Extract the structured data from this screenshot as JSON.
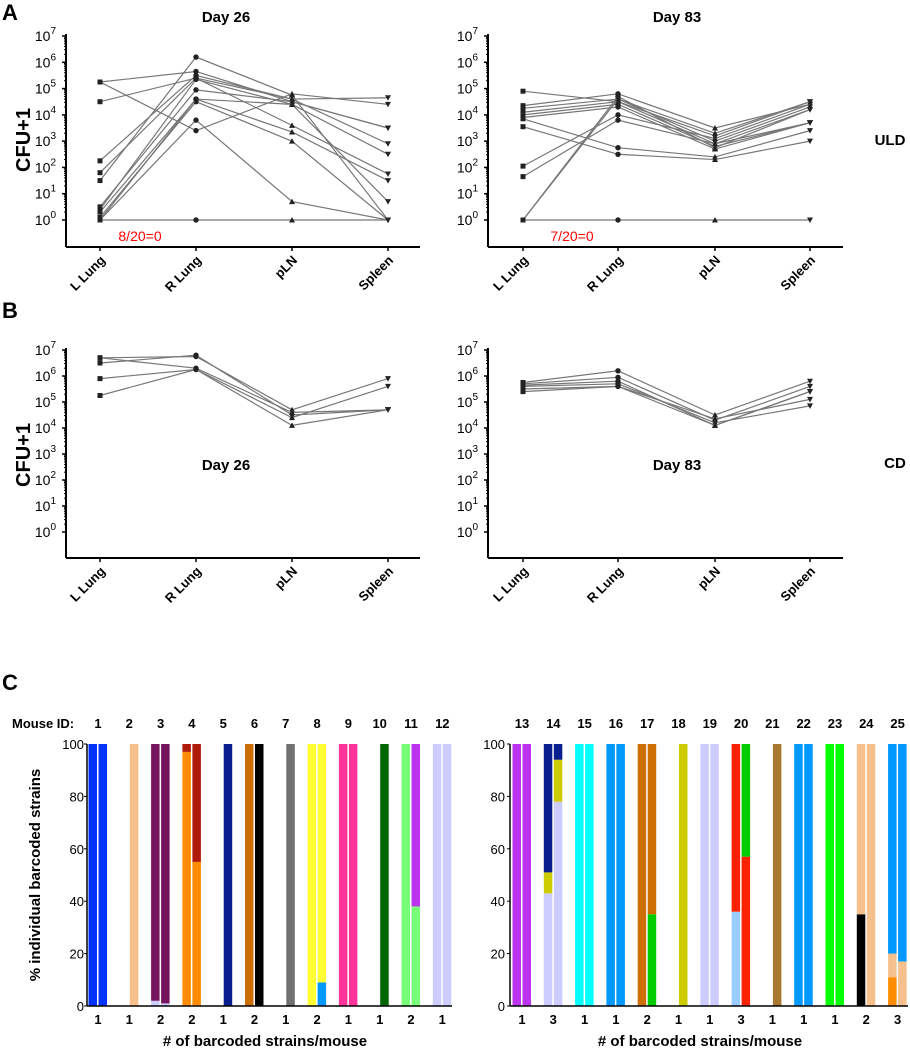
{
  "panel_letters": {
    "a": "A",
    "b": "B",
    "c": "C"
  },
  "chart_data": [
    {
      "id": "A-day26",
      "type": "line",
      "panel": "A",
      "title": "Day 26",
      "ylabel": "CFU+1",
      "yscale": "log",
      "ylim_exp": [
        0,
        7
      ],
      "ytick_exps": [
        0,
        1,
        2,
        3,
        4,
        5,
        6,
        7
      ],
      "ytick_base": "10",
      "categories": [
        "L Lung",
        "R Lung",
        "pLN",
        "Spleen"
      ],
      "annotation": "8/20=0",
      "annotation_color": "#ff0000",
      "series_log10": [
        [
          0,
          0,
          0,
          0
        ],
        [
          5.25,
          5.65,
          4.5,
          3.5
        ],
        [
          4.5,
          5.4,
          4.6,
          4.65
        ],
        [
          5.25,
          3.4,
          4.8,
          4.4
        ],
        [
          2.25,
          5.5,
          4.6,
          2.9
        ],
        [
          1.8,
          5.4,
          3.6,
          1.75
        ],
        [
          1.5,
          6.2,
          4.75,
          0
        ],
        [
          0.5,
          4.95,
          4.5,
          3.5
        ],
        [
          0.3,
          4.6,
          3.35,
          1.5
        ],
        [
          0.1,
          4.5,
          3.0,
          0
        ],
        [
          0,
          3.8,
          0.7,
          0
        ],
        [
          0,
          4.6,
          4.4,
          0.7
        ],
        [
          0.4,
          5.35,
          4.4,
          2.5
        ]
      ]
    },
    {
      "id": "A-day83",
      "type": "line",
      "panel": "A",
      "title": "Day 83",
      "side_label": "ULD",
      "yscale": "log",
      "ylim_exp": [
        0,
        7
      ],
      "ytick_exps": [
        0,
        1,
        2,
        3,
        4,
        5,
        6,
        7
      ],
      "ytick_base": "10",
      "categories": [
        "L Lung",
        "R Lung",
        "pLN",
        "Spleen"
      ],
      "annotation": "7/20=0",
      "annotation_color": "#ff0000",
      "series_log10": [
        [
          0,
          0,
          0,
          0
        ],
        [
          4.9,
          4.5,
          3.2,
          4.5
        ],
        [
          4.35,
          4.8,
          3.5,
          4.4
        ],
        [
          4.25,
          4.6,
          3.0,
          4.3
        ],
        [
          4.1,
          4.5,
          2.9,
          4.2
        ],
        [
          4.0,
          4.4,
          2.8,
          3.7
        ],
        [
          3.85,
          2.75,
          2.4,
          3.4
        ],
        [
          3.55,
          2.5,
          2.3,
          3.0
        ],
        [
          2.05,
          4.0,
          3.1,
          4.4
        ],
        [
          1.65,
          3.8,
          2.9,
          3.7
        ],
        [
          0,
          4.6,
          3.3,
          4.5
        ],
        [
          0,
          4.7,
          2.75,
          4.2
        ],
        [
          3.9,
          4.3,
          2.7,
          3.7
        ]
      ]
    },
    {
      "id": "B-day26",
      "type": "line",
      "panel": "B",
      "title": "Day 26",
      "ylabel": "CFU+1",
      "yscale": "log",
      "ylim_exp": [
        0,
        7
      ],
      "ytick_exps": [
        0,
        1,
        2,
        3,
        4,
        5,
        6,
        7
      ],
      "ytick_base": "10",
      "categories": [
        "L Lung",
        "R Lung",
        "pLN",
        "Spleen"
      ],
      "series_log10": [
        [
          6.7,
          6.75,
          4.7,
          5.9
        ],
        [
          6.5,
          6.8,
          4.5,
          4.7
        ],
        [
          5.9,
          6.25,
          4.1,
          4.7
        ],
        [
          5.25,
          6.25,
          4.4,
          5.6
        ],
        [
          6.7,
          6.3,
          4.6,
          4.7
        ]
      ]
    },
    {
      "id": "B-day83",
      "type": "line",
      "panel": "B",
      "title": "Day 83",
      "side_label": "CD",
      "yscale": "log",
      "ylim_exp": [
        0,
        7
      ],
      "ytick_exps": [
        0,
        1,
        2,
        3,
        4,
        5,
        6,
        7
      ],
      "ytick_base": "10",
      "categories": [
        "L Lung",
        "R Lung",
        "pLN",
        "Spleen"
      ],
      "series_log10": [
        [
          5.75,
          6.2,
          4.5,
          5.8
        ],
        [
          5.7,
          5.95,
          4.3,
          5.6
        ],
        [
          5.65,
          5.8,
          4.1,
          5.4
        ],
        [
          5.6,
          5.7,
          4.2,
          4.85
        ],
        [
          5.5,
          5.6,
          4.1,
          5.4
        ],
        [
          5.4,
          5.6,
          4.35,
          5.1
        ]
      ]
    },
    {
      "id": "C-1-12",
      "type": "bar",
      "stacked": true,
      "panel": "C",
      "mouse_id_label": "Mouse ID:",
      "ylabel": "% individual barcoded strains",
      "xlabel": "# of barcoded strains/mouse",
      "ylim": [
        0,
        100
      ],
      "yticks": [
        0,
        20,
        40,
        60,
        80,
        100
      ],
      "mice": [
        {
          "id": "1",
          "n": "1",
          "left": [
            [
              100,
              "#0033ff"
            ]
          ],
          "right": [
            [
              100,
              "#0033ff"
            ]
          ]
        },
        {
          "id": "2",
          "n": "1",
          "left": [],
          "right": [
            [
              100,
              "#f5c08c"
            ]
          ]
        },
        {
          "id": "3",
          "n": "2",
          "left": [
            [
              2,
              "#ccccff"
            ],
            [
              98,
              "#751560"
            ]
          ],
          "right": [
            [
              1,
              "#ccccff"
            ],
            [
              99,
              "#751560"
            ]
          ]
        },
        {
          "id": "4",
          "n": "2",
          "left": [
            [
              97,
              "#ff8c00"
            ],
            [
              3,
              "#b01a0a"
            ]
          ],
          "right": [
            [
              55,
              "#ff8c00"
            ],
            [
              45,
              "#b01a0a"
            ]
          ]
        },
        {
          "id": "5",
          "n": "1",
          "left": [],
          "right": [
            [
              100,
              "#0a1f8f"
            ]
          ]
        },
        {
          "id": "6",
          "n": "2",
          "left": [
            [
              100,
              "#cc6e00"
            ]
          ],
          "right": [
            [
              100,
              "#000000"
            ]
          ]
        },
        {
          "id": "7",
          "n": "1",
          "left": [],
          "right": [
            [
              100,
              "#707070"
            ]
          ]
        },
        {
          "id": "8",
          "n": "2",
          "left": [
            [
              100,
              "#ffff33"
            ]
          ],
          "right": [
            [
              9,
              "#0099ff"
            ],
            [
              91,
              "#ffff33"
            ]
          ]
        },
        {
          "id": "9",
          "n": "1",
          "left": [
            [
              100,
              "#ff3399"
            ]
          ],
          "right": [
            [
              100,
              "#ff3399"
            ]
          ]
        },
        {
          "id": "10",
          "n": "1",
          "left": [],
          "right": [
            [
              100,
              "#006600"
            ]
          ]
        },
        {
          "id": "11",
          "n": "2",
          "left": [
            [
              100,
              "#77ff77"
            ]
          ],
          "right": [
            [
              38,
              "#77ff77"
            ],
            [
              62,
              "#bb33ee"
            ]
          ]
        },
        {
          "id": "12",
          "n": "1",
          "left": [
            [
              100,
              "#ccccff"
            ]
          ],
          "right": [
            [
              100,
              "#ccccff"
            ]
          ]
        }
      ]
    },
    {
      "id": "C-13-25",
      "type": "bar",
      "stacked": true,
      "panel": "C",
      "xlabel": "# of barcoded strains/mouse",
      "ylim": [
        0,
        100
      ],
      "yticks": [
        0,
        20,
        40,
        60,
        80,
        100
      ],
      "mice": [
        {
          "id": "13",
          "n": "1",
          "left": [
            [
              100,
              "#bb33ee"
            ]
          ],
          "right": [
            [
              100,
              "#bb33ee"
            ]
          ]
        },
        {
          "id": "14",
          "n": "3",
          "left": [
            [
              43,
              "#ccccff"
            ],
            [
              8,
              "#cccc00"
            ],
            [
              49,
              "#0a1f8f"
            ]
          ],
          "right": [
            [
              78,
              "#ccccff"
            ],
            [
              16,
              "#cccc00"
            ],
            [
              6,
              "#0a1f8f"
            ]
          ]
        },
        {
          "id": "15",
          "n": "1",
          "left": [
            [
              100,
              "#00ffff"
            ]
          ],
          "right": [
            [
              100,
              "#00ffff"
            ]
          ]
        },
        {
          "id": "16",
          "n": "1",
          "left": [
            [
              100,
              "#0099ff"
            ]
          ],
          "right": [
            [
              100,
              "#0099ff"
            ]
          ]
        },
        {
          "id": "17",
          "n": "2",
          "left": [
            [
              100,
              "#cc6e00"
            ]
          ],
          "right": [
            [
              35,
              "#00cc00"
            ],
            [
              65,
              "#cc6e00"
            ]
          ]
        },
        {
          "id": "18",
          "n": "1",
          "left": [],
          "right": [
            [
              100,
              "#cccc00"
            ]
          ]
        },
        {
          "id": "19",
          "n": "1",
          "left": [
            [
              100,
              "#ccccff"
            ]
          ],
          "right": [
            [
              100,
              "#ccccff"
            ]
          ]
        },
        {
          "id": "20",
          "n": "3",
          "left": [
            [
              36,
              "#99ccff"
            ],
            [
              64,
              "#ff2200"
            ]
          ],
          "right": [
            [
              57,
              "#ff2200"
            ],
            [
              43,
              "#00cc00"
            ]
          ]
        },
        {
          "id": "21",
          "n": "1",
          "left": [],
          "right": [
            [
              100,
              "#a87830"
            ]
          ]
        },
        {
          "id": "22",
          "n": "1",
          "left": [
            [
              100,
              "#0099ff"
            ]
          ],
          "right": [
            [
              100,
              "#0099ff"
            ]
          ]
        },
        {
          "id": "23",
          "n": "1",
          "left": [
            [
              100,
              "#00ff00"
            ]
          ],
          "right": [
            [
              100,
              "#00ff00"
            ]
          ]
        },
        {
          "id": "24",
          "n": "2",
          "left": [
            [
              35,
              "#000000"
            ],
            [
              65,
              "#f5c08c"
            ]
          ],
          "right": [
            [
              100,
              "#f5c08c"
            ]
          ]
        },
        {
          "id": "25",
          "n": "3",
          "left": [
            [
              11,
              "#ff8c00"
            ],
            [
              9,
              "#f5c08c"
            ],
            [
              80,
              "#0099ff"
            ]
          ],
          "right": [
            [
              17,
              "#f5c08c"
            ],
            [
              83,
              "#0099ff"
            ]
          ]
        }
      ]
    }
  ]
}
